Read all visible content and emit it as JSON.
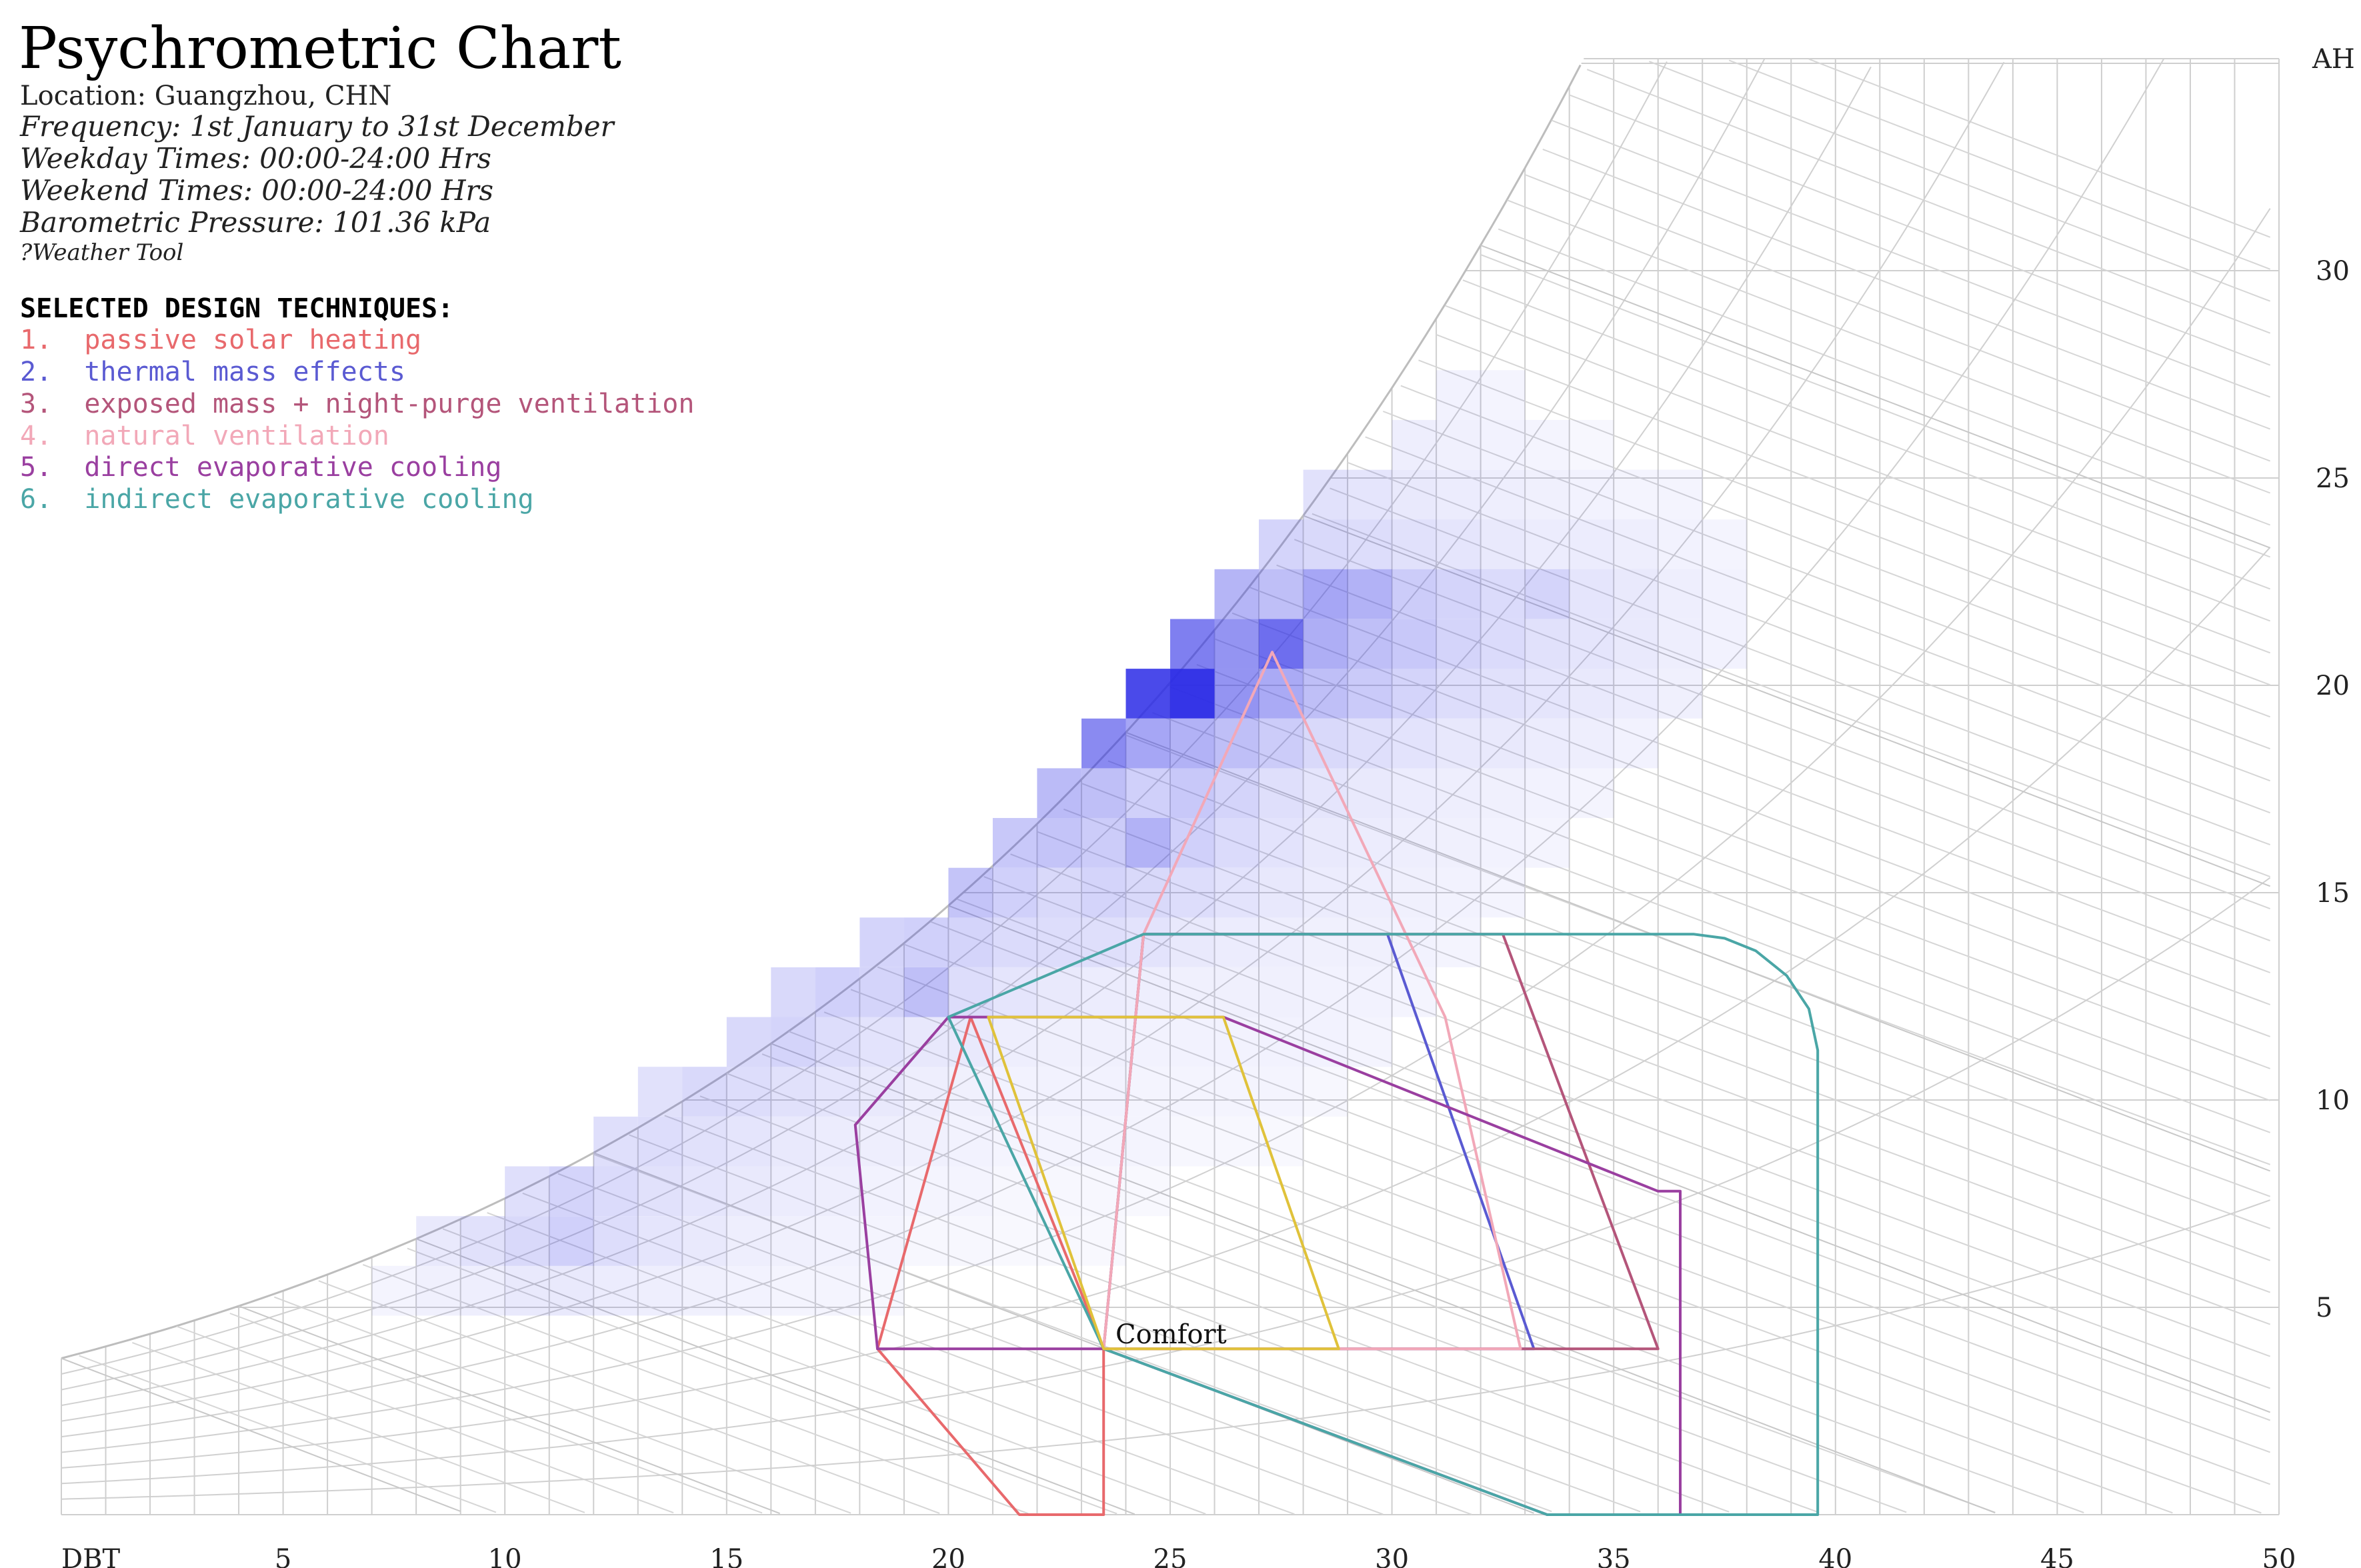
{
  "header": {
    "title": "Psychrometric Chart",
    "location": "Location: Guangzhou, CHN",
    "frequency": "Frequency: 1st January to 31st December",
    "weekday": "Weekday Times: 00:00-24:00 Hrs",
    "weekend": "Weekend Times: 00:00-24:00 Hrs",
    "pressure": "Barometric Pressure: 101.36 kPa",
    "source": "?Weather Tool"
  },
  "legend": {
    "heading": "SELECTED DESIGN TECHNIQUES:",
    "items": [
      {
        "label": "1.  passive solar heating",
        "color": "#e8696c"
      },
      {
        "label": "2.  thermal mass effects",
        "color": "#5a5ad2"
      },
      {
        "label": "3.  exposed mass + night-purge ventilation",
        "color": "#b4557a"
      },
      {
        "label": "4.  natural ventilation",
        "color": "#f2a8b8"
      },
      {
        "label": "5.  direct evaporative cooling",
        "color": "#9a3fa0"
      },
      {
        "label": "6.  indirect evaporative cooling",
        "color": "#4aa6a6"
      }
    ]
  },
  "chart_data": {
    "type": "heatmap",
    "title": "Psychrometric Chart",
    "x_label": "DBT",
    "y_label": "AH",
    "x_range": [
      0,
      50
    ],
    "y_range": [
      0,
      35
    ],
    "x_ticks": [
      5,
      10,
      15,
      20,
      25,
      30,
      35,
      40,
      45,
      50
    ],
    "y_ticks": [
      5,
      10,
      15,
      20,
      25,
      30
    ],
    "grid": true,
    "comfort_label": "Comfort",
    "cell_size": {
      "dbt": 1,
      "ah": 1.2
    },
    "cells": [
      [
        7,
        4.8,
        0.05
      ],
      [
        8,
        4.8,
        0.07
      ],
      [
        9,
        4.8,
        0.08
      ],
      [
        10,
        4.8,
        0.1
      ],
      [
        11,
        4.8,
        0.1
      ],
      [
        12,
        4.8,
        0.09
      ],
      [
        13,
        4.8,
        0.08
      ],
      [
        14,
        4.8,
        0.07
      ],
      [
        15,
        4.8,
        0.06
      ],
      [
        16,
        4.8,
        0.05
      ],
      [
        17,
        4.8,
        0.05
      ],
      [
        18,
        4.8,
        0.04
      ],
      [
        8,
        6,
        0.1
      ],
      [
        9,
        6,
        0.14
      ],
      [
        10,
        6,
        0.18
      ],
      [
        11,
        6,
        0.22
      ],
      [
        12,
        6,
        0.16
      ],
      [
        13,
        6,
        0.12
      ],
      [
        14,
        6,
        0.1
      ],
      [
        15,
        6,
        0.08
      ],
      [
        16,
        6,
        0.07
      ],
      [
        17,
        6,
        0.06
      ],
      [
        18,
        6,
        0.05
      ],
      [
        19,
        6,
        0.04
      ],
      [
        20,
        6,
        0.04
      ],
      [
        21,
        6,
        0.03
      ],
      [
        22,
        6,
        0.03
      ],
      [
        23,
        6,
        0.03
      ],
      [
        10,
        7.2,
        0.15
      ],
      [
        11,
        7.2,
        0.2
      ],
      [
        12,
        7.2,
        0.17
      ],
      [
        13,
        7.2,
        0.14
      ],
      [
        14,
        7.2,
        0.12
      ],
      [
        15,
        7.2,
        0.1
      ],
      [
        16,
        7.2,
        0.09
      ],
      [
        17,
        7.2,
        0.08
      ],
      [
        18,
        7.2,
        0.06
      ],
      [
        19,
        7.2,
        0.05
      ],
      [
        20,
        7.2,
        0.05
      ],
      [
        21,
        7.2,
        0.04
      ],
      [
        22,
        7.2,
        0.04
      ],
      [
        23,
        7.2,
        0.04
      ],
      [
        24,
        7.2,
        0.03
      ],
      [
        12,
        8.4,
        0.15
      ],
      [
        13,
        8.4,
        0.16
      ],
      [
        14,
        8.4,
        0.14
      ],
      [
        15,
        8.4,
        0.12
      ],
      [
        16,
        8.4,
        0.1
      ],
      [
        17,
        8.4,
        0.09
      ],
      [
        18,
        8.4,
        0.08
      ],
      [
        19,
        8.4,
        0.07
      ],
      [
        20,
        8.4,
        0.06
      ],
      [
        21,
        8.4,
        0.05
      ],
      [
        22,
        8.4,
        0.05
      ],
      [
        23,
        8.4,
        0.05
      ],
      [
        24,
        8.4,
        0.05
      ],
      [
        25,
        8.4,
        0.04
      ],
      [
        26,
        8.4,
        0.04
      ],
      [
        27,
        8.4,
        0.03
      ],
      [
        13,
        9.6,
        0.14
      ],
      [
        14,
        9.6,
        0.18
      ],
      [
        15,
        9.6,
        0.16
      ],
      [
        16,
        9.6,
        0.14
      ],
      [
        17,
        9.6,
        0.12
      ],
      [
        18,
        9.6,
        0.1
      ],
      [
        19,
        9.6,
        0.08
      ],
      [
        20,
        9.6,
        0.07
      ],
      [
        21,
        9.6,
        0.06
      ],
      [
        22,
        9.6,
        0.06
      ],
      [
        23,
        9.6,
        0.06
      ],
      [
        24,
        9.6,
        0.05
      ],
      [
        25,
        9.6,
        0.05
      ],
      [
        26,
        9.6,
        0.05
      ],
      [
        27,
        9.6,
        0.05
      ],
      [
        28,
        9.6,
        0.04
      ],
      [
        15,
        10.8,
        0.18
      ],
      [
        16,
        10.8,
        0.2
      ],
      [
        17,
        10.8,
        0.16
      ],
      [
        18,
        10.8,
        0.13
      ],
      [
        19,
        10.8,
        0.11
      ],
      [
        20,
        10.8,
        0.1
      ],
      [
        21,
        10.8,
        0.08
      ],
      [
        22,
        10.8,
        0.07
      ],
      [
        23,
        10.8,
        0.07
      ],
      [
        24,
        10.8,
        0.06
      ],
      [
        25,
        10.8,
        0.06
      ],
      [
        26,
        10.8,
        0.06
      ],
      [
        27,
        10.8,
        0.06
      ],
      [
        28,
        10.8,
        0.06
      ],
      [
        29,
        10.8,
        0.05
      ],
      [
        16,
        12,
        0.18
      ],
      [
        17,
        12,
        0.22
      ],
      [
        18,
        12,
        0.2
      ],
      [
        19,
        12,
        0.3
      ],
      [
        20,
        12,
        0.16
      ],
      [
        21,
        12,
        0.12
      ],
      [
        22,
        12,
        0.1
      ],
      [
        23,
        12,
        0.09
      ],
      [
        24,
        12,
        0.08
      ],
      [
        25,
        12,
        0.07
      ],
      [
        26,
        12,
        0.07
      ],
      [
        27,
        12,
        0.07
      ],
      [
        28,
        12,
        0.06
      ],
      [
        29,
        12,
        0.06
      ],
      [
        30,
        12,
        0.05
      ],
      [
        18,
        13.2,
        0.2
      ],
      [
        19,
        13.2,
        0.22
      ],
      [
        20,
        13.2,
        0.2
      ],
      [
        21,
        13.2,
        0.17
      ],
      [
        22,
        13.2,
        0.16
      ],
      [
        23,
        13.2,
        0.15
      ],
      [
        24,
        13.2,
        0.13
      ],
      [
        25,
        13.2,
        0.1
      ],
      [
        26,
        13.2,
        0.09
      ],
      [
        27,
        13.2,
        0.08
      ],
      [
        28,
        13.2,
        0.07
      ],
      [
        29,
        13.2,
        0.07
      ],
      [
        30,
        13.2,
        0.06
      ],
      [
        31,
        13.2,
        0.05
      ],
      [
        20,
        14.4,
        0.28
      ],
      [
        21,
        14.4,
        0.22
      ],
      [
        22,
        14.4,
        0.18
      ],
      [
        23,
        14.4,
        0.2
      ],
      [
        24,
        14.4,
        0.18
      ],
      [
        25,
        14.4,
        0.16
      ],
      [
        26,
        14.4,
        0.13
      ],
      [
        27,
        14.4,
        0.11
      ],
      [
        28,
        14.4,
        0.09
      ],
      [
        29,
        14.4,
        0.08
      ],
      [
        30,
        14.4,
        0.07
      ],
      [
        31,
        14.4,
        0.06
      ],
      [
        32,
        14.4,
        0.05
      ],
      [
        21,
        15.6,
        0.26
      ],
      [
        22,
        15.6,
        0.28
      ],
      [
        23,
        15.6,
        0.24
      ],
      [
        24,
        15.6,
        0.36
      ],
      [
        25,
        15.6,
        0.22
      ],
      [
        26,
        15.6,
        0.17
      ],
      [
        27,
        15.6,
        0.13
      ],
      [
        28,
        15.6,
        0.1
      ],
      [
        29,
        15.6,
        0.09
      ],
      [
        30,
        15.6,
        0.08
      ],
      [
        31,
        15.6,
        0.07
      ],
      [
        32,
        15.6,
        0.06
      ],
      [
        33,
        15.6,
        0.05
      ],
      [
        22,
        16.8,
        0.32
      ],
      [
        23,
        16.8,
        0.3
      ],
      [
        24,
        16.8,
        0.22
      ],
      [
        25,
        16.8,
        0.26
      ],
      [
        26,
        16.8,
        0.2
      ],
      [
        27,
        16.8,
        0.15
      ],
      [
        28,
        16.8,
        0.12
      ],
      [
        29,
        16.8,
        0.1
      ],
      [
        30,
        16.8,
        0.09
      ],
      [
        31,
        16.8,
        0.08
      ],
      [
        32,
        16.8,
        0.07
      ],
      [
        33,
        16.8,
        0.06
      ],
      [
        34,
        16.8,
        0.05
      ],
      [
        23,
        18,
        0.55
      ],
      [
        24,
        18,
        0.42
      ],
      [
        25,
        18,
        0.36
      ],
      [
        26,
        18,
        0.3
      ],
      [
        27,
        18,
        0.24
      ],
      [
        28,
        18,
        0.18
      ],
      [
        29,
        18,
        0.15
      ],
      [
        30,
        18,
        0.13
      ],
      [
        31,
        18,
        0.11
      ],
      [
        32,
        18,
        0.1
      ],
      [
        33,
        18,
        0.09
      ],
      [
        34,
        18,
        0.08
      ],
      [
        35,
        18,
        0.06
      ],
      [
        24,
        19.2,
        0.85
      ],
      [
        25,
        19.2,
        0.95
      ],
      [
        26,
        19.2,
        0.5
      ],
      [
        27,
        19.2,
        0.4
      ],
      [
        28,
        19.2,
        0.3
      ],
      [
        29,
        19.2,
        0.25
      ],
      [
        30,
        19.2,
        0.2
      ],
      [
        31,
        19.2,
        0.16
      ],
      [
        32,
        19.2,
        0.14
      ],
      [
        33,
        19.2,
        0.12
      ],
      [
        34,
        19.2,
        0.1
      ],
      [
        35,
        19.2,
        0.09
      ],
      [
        36,
        19.2,
        0.07
      ],
      [
        25,
        20.4,
        0.6
      ],
      [
        26,
        20.4,
        0.5
      ],
      [
        27,
        20.4,
        0.68
      ],
      [
        28,
        20.4,
        0.38
      ],
      [
        29,
        20.4,
        0.3
      ],
      [
        30,
        20.4,
        0.26
      ],
      [
        31,
        20.4,
        0.2
      ],
      [
        32,
        20.4,
        0.17
      ],
      [
        33,
        20.4,
        0.14
      ],
      [
        34,
        20.4,
        0.12
      ],
      [
        35,
        20.4,
        0.1
      ],
      [
        36,
        20.4,
        0.08
      ],
      [
        37,
        20.4,
        0.06
      ],
      [
        26,
        21.6,
        0.35
      ],
      [
        27,
        21.6,
        0.3
      ],
      [
        28,
        21.6,
        0.42
      ],
      [
        29,
        21.6,
        0.36
      ],
      [
        30,
        21.6,
        0.24
      ],
      [
        31,
        21.6,
        0.2
      ],
      [
        32,
        21.6,
        0.17
      ],
      [
        33,
        21.6,
        0.2
      ],
      [
        34,
        21.6,
        0.12
      ],
      [
        35,
        21.6,
        0.1
      ],
      [
        36,
        21.6,
        0.08
      ],
      [
        37,
        21.6,
        0.06
      ],
      [
        27,
        22.8,
        0.2
      ],
      [
        28,
        22.8,
        0.18
      ],
      [
        29,
        22.8,
        0.16
      ],
      [
        30,
        22.8,
        0.14
      ],
      [
        31,
        22.8,
        0.12
      ],
      [
        32,
        22.8,
        0.1
      ],
      [
        33,
        22.8,
        0.09
      ],
      [
        34,
        22.8,
        0.09
      ],
      [
        35,
        22.8,
        0.08
      ],
      [
        36,
        22.8,
        0.06
      ],
      [
        37,
        22.8,
        0.05
      ],
      [
        28,
        24,
        0.14
      ],
      [
        29,
        24,
        0.12
      ],
      [
        30,
        24,
        0.1
      ],
      [
        31,
        24,
        0.09
      ],
      [
        32,
        24,
        0.08
      ],
      [
        33,
        24,
        0.07
      ],
      [
        34,
        24,
        0.06
      ],
      [
        35,
        24,
        0.05
      ],
      [
        36,
        24,
        0.05
      ],
      [
        30,
        25.2,
        0.08
      ],
      [
        31,
        25.2,
        0.07
      ],
      [
        32,
        25.2,
        0.06
      ],
      [
        33,
        25.2,
        0.05
      ],
      [
        34,
        25.2,
        0.04
      ],
      [
        31,
        26.4,
        0.06
      ],
      [
        32,
        26.4,
        0.05
      ]
    ],
    "zones": [
      {
        "id": 1,
        "name": "passive solar heating",
        "color": "#e8696c",
        "points": [
          [
            21.6,
            0
          ],
          [
            23.5,
            0
          ],
          [
            23.5,
            4
          ],
          [
            20.5,
            12
          ],
          [
            18.4,
            4
          ]
        ]
      },
      {
        "id": 2,
        "name": "thermal mass effects",
        "color": "#5a5ad2",
        "points": [
          [
            23.5,
            4
          ],
          [
            33.2,
            4
          ],
          [
            29.9,
            14
          ],
          [
            24.4,
            14
          ]
        ]
      },
      {
        "id": 3,
        "name": "exposed mass + night-purge ventilation",
        "color": "#b4557a",
        "points": [
          [
            23.5,
            4
          ],
          [
            36,
            4
          ],
          [
            32.5,
            14
          ],
          [
            24.4,
            14
          ]
        ]
      },
      {
        "id": 4,
        "name": "natural ventilation",
        "color": "#f2a8b8",
        "points": [
          [
            23.5,
            4
          ],
          [
            32.9,
            4
          ],
          [
            31.2,
            12
          ],
          [
            27.3,
            20.8
          ],
          [
            24.4,
            14
          ]
        ]
      },
      {
        "id": 5,
        "name": "direct evaporative cooling",
        "color": "#9a3fa0",
        "points": [
          [
            17.9,
            9.4
          ],
          [
            20,
            12
          ],
          [
            26.2,
            12
          ],
          [
            36,
            7.8
          ],
          [
            36.5,
            7.8
          ],
          [
            36.5,
            0
          ],
          [
            33.5,
            0
          ],
          [
            23.5,
            4
          ],
          [
            18.4,
            4
          ]
        ]
      },
      {
        "id": 6,
        "name": "indirect evaporative cooling",
        "color": "#4aa6a6",
        "points": [
          [
            24.4,
            14
          ],
          [
            36.8,
            14
          ],
          [
            37.5,
            13.9
          ],
          [
            38.2,
            13.6
          ],
          [
            38.9,
            13
          ],
          [
            39.4,
            12.2
          ],
          [
            39.6,
            11.2
          ],
          [
            39.6,
            0
          ],
          [
            33.5,
            0
          ],
          [
            23.5,
            4
          ],
          [
            20,
            12
          ]
        ]
      },
      {
        "id": 0,
        "name": "Comfort",
        "color": "#e0c23a",
        "points": [
          [
            23.5,
            4
          ],
          [
            28.8,
            4
          ],
          [
            26.2,
            12
          ],
          [
            20.9,
            12
          ]
        ]
      }
    ]
  }
}
